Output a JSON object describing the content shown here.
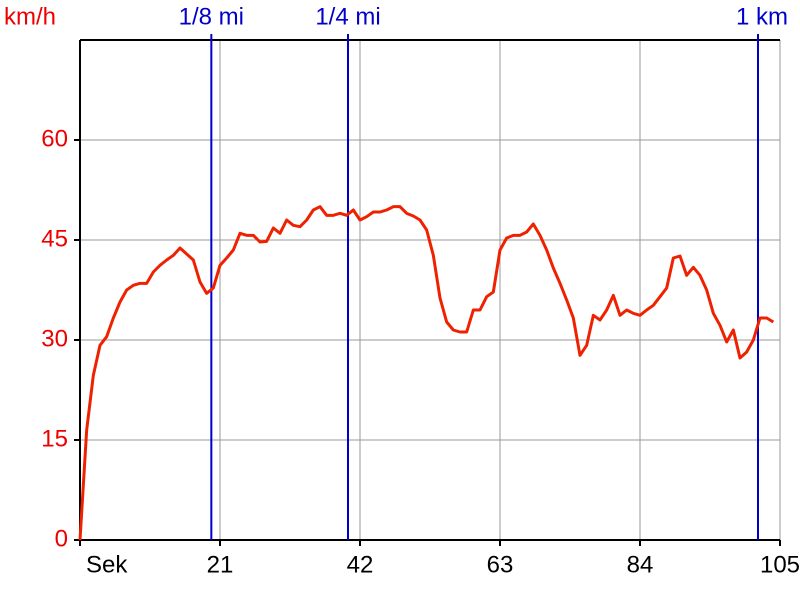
{
  "chart_data": {
    "type": "line",
    "ylabel": "km/h",
    "xlabel": "Sek",
    "x": [
      0,
      1,
      2,
      3,
      4,
      5,
      6,
      7,
      8,
      9,
      10,
      11,
      12,
      13,
      14,
      15,
      16,
      17,
      18,
      19,
      20,
      21,
      22,
      23,
      24,
      25,
      26,
      27,
      28,
      29,
      30,
      31,
      32,
      33,
      34,
      35,
      36,
      37,
      38,
      39,
      40,
      41,
      42,
      43,
      44,
      45,
      46,
      47,
      48,
      49,
      50,
      51,
      52,
      53,
      54,
      55,
      56,
      57,
      58,
      59,
      60,
      61,
      62,
      63,
      64,
      65,
      66,
      67,
      68,
      69,
      70,
      71,
      72,
      73,
      74,
      75,
      76,
      77,
      78,
      79,
      80,
      81,
      82,
      83,
      84,
      85,
      86,
      87,
      88,
      89,
      90,
      91,
      92,
      93,
      94,
      95,
      96,
      97,
      98,
      99,
      100,
      101,
      102,
      103,
      104
    ],
    "series": [
      {
        "name": "km/h",
        "color": "#ee2200",
        "values": [
          0,
          16.5,
          24.7,
          29.2,
          30.5,
          33.3,
          35.7,
          37.5,
          38.2,
          38.5,
          38.5,
          40.2,
          41.2,
          42,
          42.7,
          43.8,
          42.9,
          42,
          38.7,
          37,
          37.8,
          41.2,
          42.3,
          43.5,
          46,
          45.7,
          45.7,
          44.7,
          44.8,
          46.8,
          46,
          48,
          47.2,
          47,
          48,
          49.5,
          50,
          48.7,
          48.7,
          49,
          48.7,
          49.5,
          48,
          48.5,
          49.2,
          49.2,
          49.5,
          50,
          50,
          49,
          48.6,
          48,
          46.5,
          42.7,
          36.3,
          32.7,
          31.5,
          31.2,
          31.2,
          34.5,
          34.5,
          36.5,
          37.2,
          43.5,
          45.3,
          45.7,
          45.7,
          46.2,
          47.4,
          45.7,
          43.5,
          40.8,
          38.5,
          36,
          33.3,
          27.7,
          29.2,
          33.7,
          33,
          34.5,
          36.7,
          33.7,
          34.5,
          34,
          33.7,
          34.5,
          35.2,
          36.5,
          37.8,
          42.3,
          42.6,
          39.7,
          40.9,
          39.7,
          37.5,
          34,
          32.2,
          29.7,
          31.5,
          27.3,
          28.2,
          30,
          33.3,
          33.3,
          32.7
        ]
      }
    ],
    "xlim": [
      0,
      105
    ],
    "xticks": [
      21,
      42,
      63,
      84,
      105
    ],
    "ylim": [
      0,
      75
    ],
    "yticks": [
      0,
      15,
      30,
      45,
      60
    ],
    "grid": true,
    "markers": [
      {
        "label": "1/8 mi",
        "x": 19.7
      },
      {
        "label": "1/4 mi",
        "x": 40.2
      },
      {
        "label": "1 km",
        "x": 101.7
      }
    ],
    "marker_color": "#0000cc"
  }
}
